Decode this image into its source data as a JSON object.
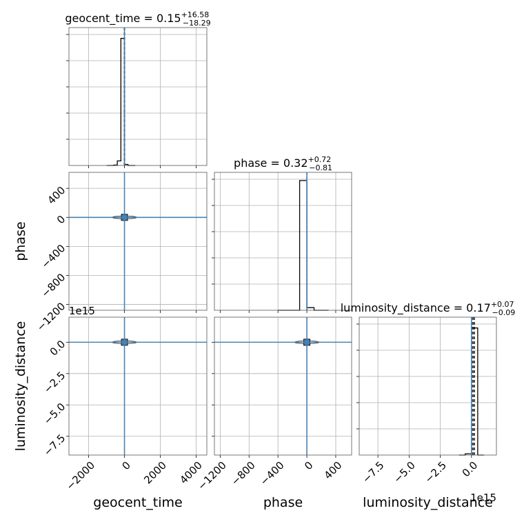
{
  "chart_data": {
    "type": "corner",
    "parameters": [
      "geocent_time",
      "phase",
      "luminosity_distance"
    ],
    "titles": [
      {
        "param": "geocent_time",
        "text": "geocent_time = 0.15",
        "sup": "+16.58",
        "sub": "−18.29",
        "median": 0.15,
        "plus": 16.58,
        "minus": 18.29
      },
      {
        "param": "phase",
        "text": "phase = 0.32",
        "sup": "+0.72",
        "sub": "−0.81",
        "median": 0.32,
        "plus": 0.72,
        "minus": 0.81
      },
      {
        "param": "luminosity_distance",
        "text": "luminosity_distance = 0.17",
        "sup": "+0.07",
        "sub": "−0.09",
        "median": 0.17,
        "plus": 0.07,
        "minus": 0.09
      }
    ],
    "axes": {
      "geocent_time": {
        "label": "geocent_time",
        "range": [
          -3100,
          4600
        ],
        "ticks": [
          -2000,
          0,
          2000,
          4000
        ],
        "tick_labels": [
          "−2000",
          "0",
          "2000",
          "4000"
        ]
      },
      "phase": {
        "label": "phase",
        "range": [
          -1280,
          620
        ],
        "ticks": [
          -1200,
          -800,
          -400,
          0,
          400
        ],
        "tick_labels": [
          "−1200",
          "−800",
          "−400",
          "0",
          "400"
        ]
      },
      "luminosity_distance": {
        "label": "luminosity_distance",
        "range": [
          -9.0,
          2.0
        ],
        "ticks": [
          -7.5,
          -5.0,
          -2.5,
          0.0
        ],
        "tick_labels": [
          "−7.5",
          "−5.0",
          "−2.5",
          "0.0"
        ],
        "offset": "1e15"
      }
    },
    "truths": {
      "geocent_time": 0,
      "phase": 0,
      "luminosity_distance": 0
    },
    "histograms": {
      "geocent_time": {
        "edges": [
          -1000,
          -800,
          -600,
          -400,
          -200,
          0,
          200,
          400,
          600
        ],
        "counts": [
          0,
          0,
          0.3,
          3.5,
          97,
          0.8,
          0,
          0
        ],
        "ylim": [
          0,
          100
        ]
      },
      "phase": {
        "edges": [
          -400,
          -300,
          -200,
          -100,
          0,
          100,
          200,
          300
        ],
        "counts": [
          0,
          0,
          0,
          99,
          2,
          0,
          0
        ],
        "ylim": [
          0,
          100
        ]
      },
      "luminosity_distance": {
        "edges": [
          -1.0,
          -0.5,
          0,
          0.5,
          1.0
        ],
        "counts": [
          0,
          1,
          97,
          0
        ],
        "ylim": [
          0,
          100
        ]
      }
    },
    "grid": true,
    "grid_style": "rgb(176,176,176)"
  }
}
